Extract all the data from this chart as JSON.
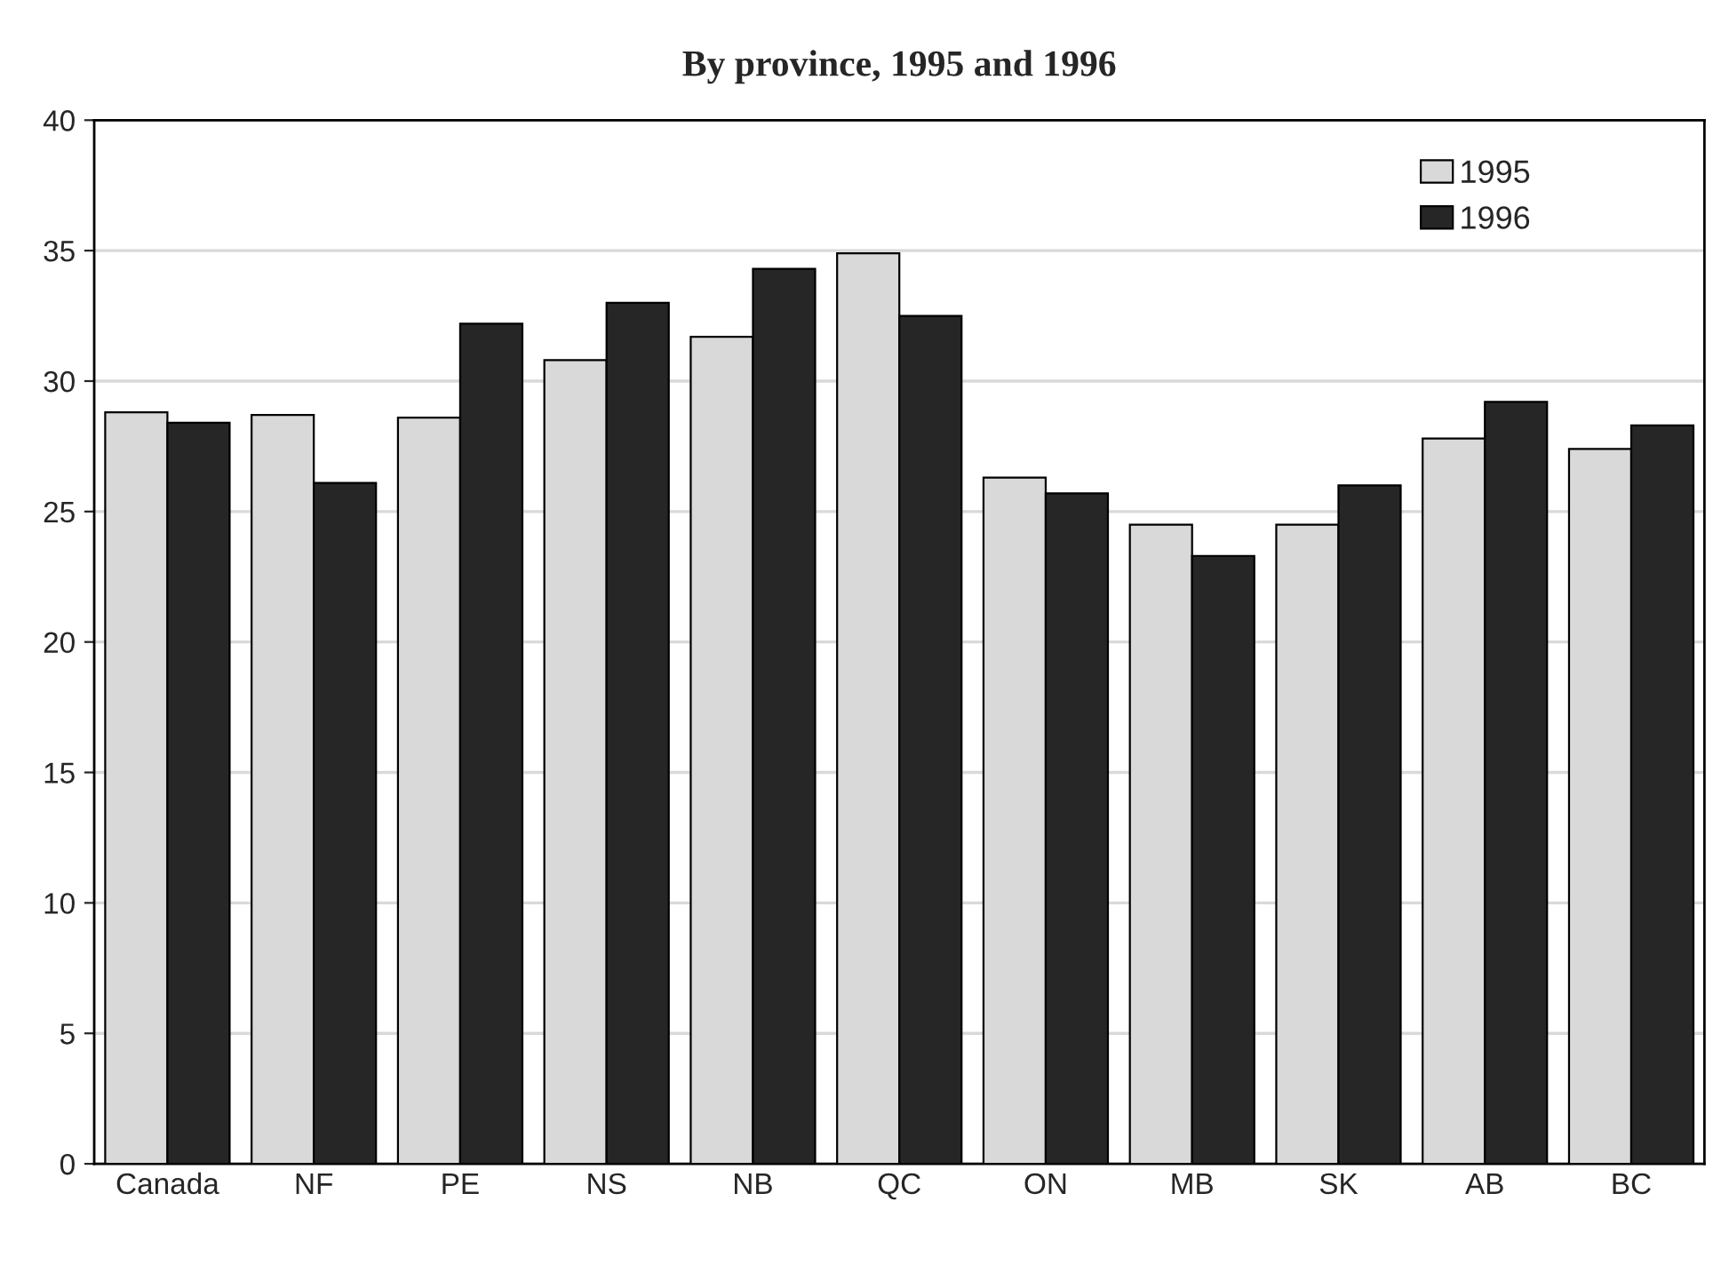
{
  "chart_data": {
    "type": "bar",
    "title": "By province, 1995 and 1996",
    "categories": [
      "Canada",
      "NF",
      "PE",
      "NS",
      "NB",
      "QC",
      "ON",
      "MB",
      "SK",
      "AB",
      "BC"
    ],
    "series": [
      {
        "name": "1995",
        "color": "#d9d9d9",
        "values": [
          28.8,
          28.7,
          28.6,
          30.8,
          31.7,
          34.9,
          26.3,
          24.5,
          24.5,
          27.8,
          27.4
        ]
      },
      {
        "name": "1996",
        "color": "#262626",
        "values": [
          28.4,
          26.1,
          32.2,
          33.0,
          34.3,
          32.5,
          25.7,
          23.3,
          26.0,
          29.2,
          28.3
        ]
      }
    ],
    "ylim": [
      0,
      40
    ],
    "yticks": [
      0,
      5,
      10,
      15,
      20,
      25,
      30,
      35,
      40
    ],
    "grid": "y",
    "legend": "top right"
  }
}
